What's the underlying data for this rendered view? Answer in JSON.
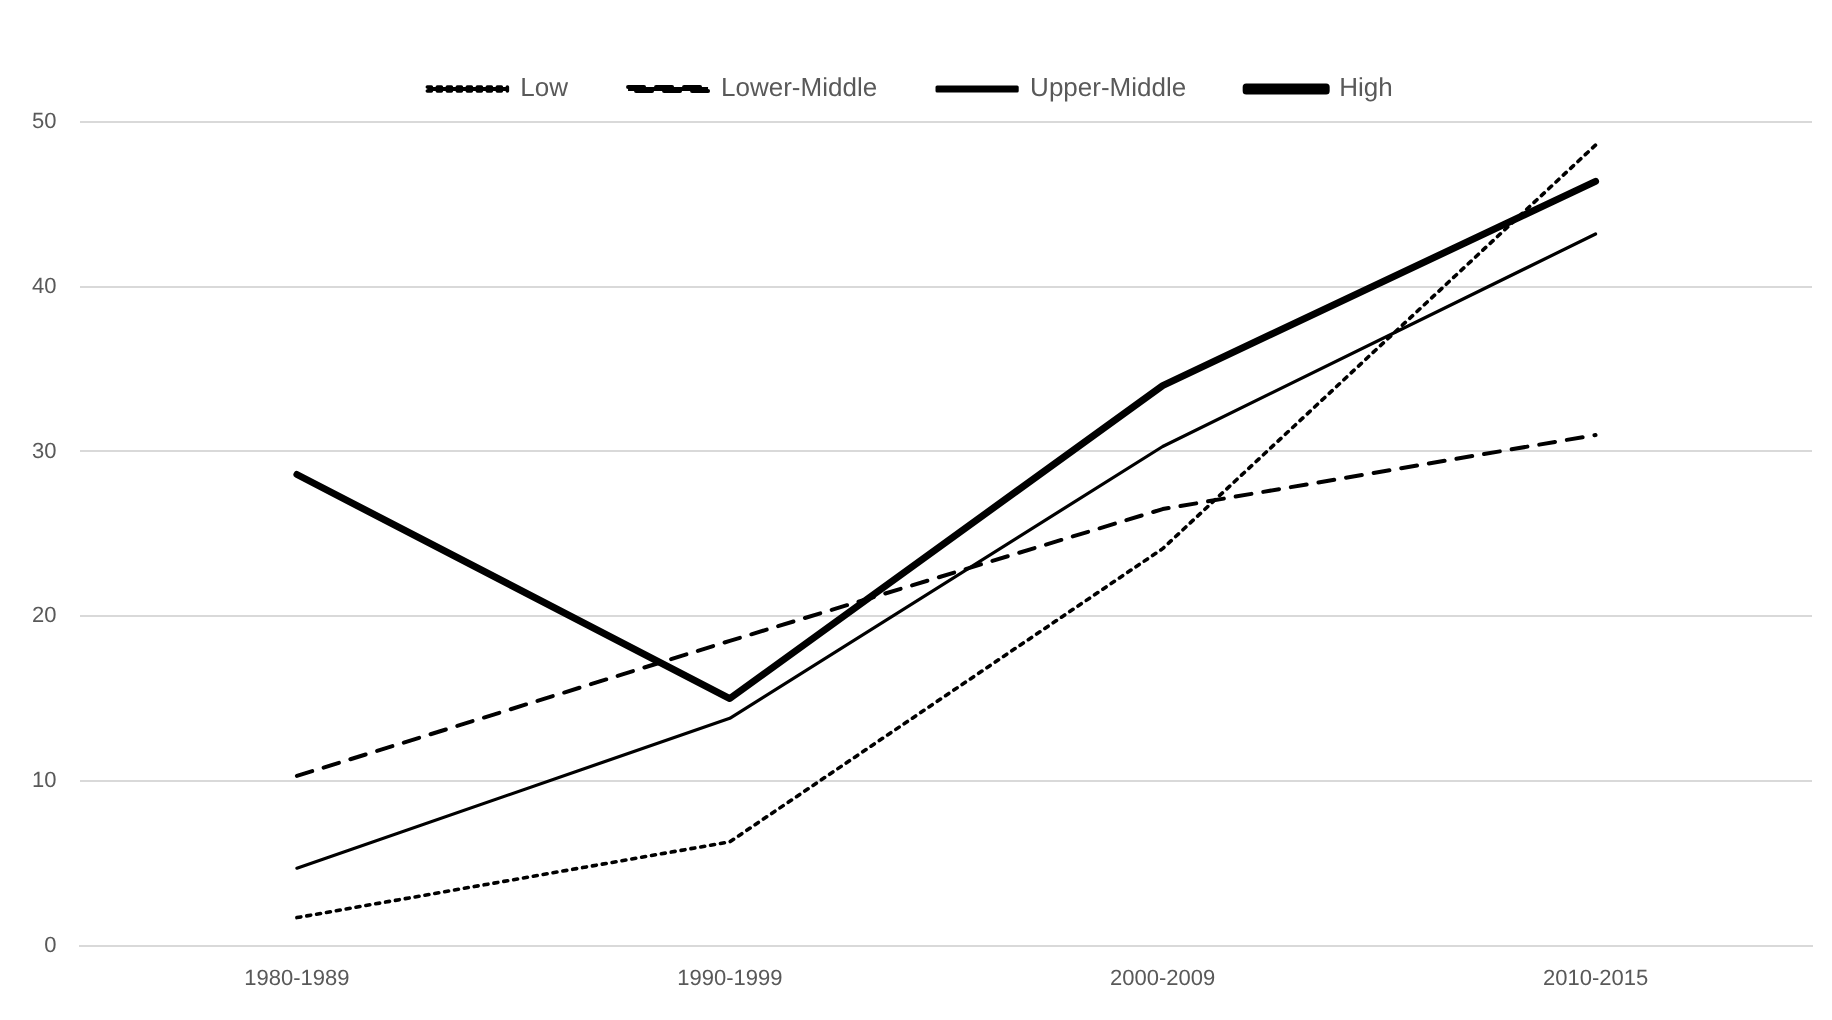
{
  "chart_data": {
    "type": "line",
    "categories": [
      "1980-1989",
      "1990-1999",
      "2000-2009",
      "2010-2015"
    ],
    "series": [
      {
        "name": "Low",
        "color": "#000000",
        "line_style": "dotted",
        "values": [
          1.7,
          6.3,
          24.1,
          48.6
        ]
      },
      {
        "name": "Lower-Middle",
        "color": "#000000",
        "line_style": "dashed",
        "values": [
          10.3,
          18.5,
          26.5,
          31.0
        ]
      },
      {
        "name": "Upper-Middle",
        "color": "#000000",
        "line_style": "solid",
        "values": [
          4.7,
          13.8,
          30.3,
          43.2
        ]
      },
      {
        "name": "High",
        "color": "#000000",
        "line_style": "solid",
        "values": [
          28.6,
          15.0,
          34.0,
          46.4
        ]
      }
    ],
    "ylim": [
      0,
      50
    ],
    "yticks": [
      0,
      10,
      20,
      30,
      40,
      50
    ],
    "grid": "y",
    "legend": "top",
    "marker": "none"
  }
}
